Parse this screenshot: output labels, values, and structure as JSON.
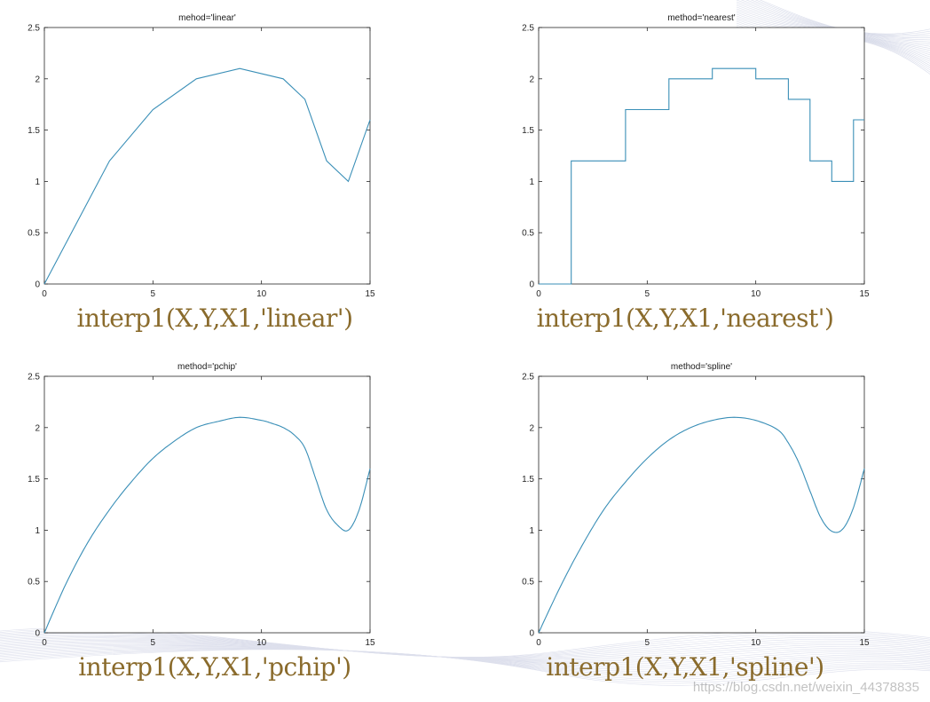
{
  "chart_data": [
    {
      "type": "line",
      "title": "mehod='linear'",
      "caption": "interp1(X,Y,X1,'linear')",
      "xlim": [
        0,
        15
      ],
      "ylim": [
        0,
        2.5
      ],
      "xticks": [
        "0",
        "5",
        "10",
        "15"
      ],
      "yticks": [
        "0",
        "0.5",
        "1",
        "1.5",
        "2",
        "2.5"
      ],
      "grid": false,
      "x": [
        0,
        3,
        5,
        7,
        9,
        11,
        12,
        13,
        14,
        15
      ],
      "y": [
        0,
        1.2,
        1.7,
        2.0,
        2.1,
        2.0,
        1.8,
        1.2,
        1.0,
        1.6
      ],
      "line_color": "#3a8fb7"
    },
    {
      "type": "line",
      "title": "method='nearest'",
      "caption": "interp1(X,Y,X1,'nearest')",
      "xlim": [
        0,
        15
      ],
      "ylim": [
        0,
        2.5
      ],
      "xticks": [
        "0",
        "5",
        "10",
        "15"
      ],
      "yticks": [
        "0",
        "0.5",
        "1",
        "1.5",
        "2",
        "2.5"
      ],
      "grid": false,
      "x": [
        0,
        1.45,
        1.45,
        1.5,
        1.5,
        4,
        4,
        6,
        6,
        8,
        8,
        10,
        10,
        11.5,
        11.5,
        12.5,
        12.5,
        13.5,
        13.5,
        14.5,
        14.5,
        15
      ],
      "y": [
        0,
        0,
        0,
        0,
        1.2,
        1.2,
        1.7,
        1.7,
        2.0,
        2.0,
        2.1,
        2.1,
        2.0,
        2.0,
        1.8,
        1.8,
        1.2,
        1.2,
        1.0,
        1.0,
        1.6,
        1.6
      ],
      "line_color": "#3a8fb7"
    },
    {
      "type": "line",
      "title": "method='pchip'",
      "caption": "interp1(X,Y,X1,'pchip')",
      "xlim": [
        0,
        15
      ],
      "ylim": [
        0,
        2.5
      ],
      "xticks": [
        "0",
        "5",
        "10",
        "15"
      ],
      "yticks": [
        "0",
        "0.5",
        "1",
        "1.5",
        "2",
        "2.5"
      ],
      "grid": false,
      "x": [
        0,
        1,
        2,
        3,
        4,
        5,
        6,
        7,
        8,
        9,
        10,
        10.5,
        11,
        11.5,
        12,
        12.5,
        13,
        13.5,
        14,
        14.5,
        15
      ],
      "y": [
        0,
        0.48,
        0.88,
        1.2,
        1.47,
        1.7,
        1.87,
        2.0,
        2.06,
        2.1,
        2.07,
        2.04,
        2.0,
        1.93,
        1.8,
        1.5,
        1.2,
        1.05,
        1.0,
        1.2,
        1.6
      ],
      "line_color": "#3a8fb7"
    },
    {
      "type": "line",
      "title": "method='spline'",
      "caption": "interp1(X,Y,X1,'spline')",
      "xlim": [
        0,
        15
      ],
      "ylim": [
        0,
        2.5
      ],
      "xticks": [
        "0",
        "5",
        "10",
        "15"
      ],
      "yticks": [
        "0",
        "0.5",
        "1",
        "1.5",
        "2",
        "2.5"
      ],
      "grid": false,
      "x": [
        0,
        1,
        2,
        3,
        4,
        5,
        6,
        7,
        8,
        9,
        10,
        11,
        11.5,
        12,
        12.5,
        13,
        13.5,
        14,
        14.5,
        15
      ],
      "y": [
        0,
        0.45,
        0.85,
        1.2,
        1.47,
        1.7,
        1.88,
        2.0,
        2.07,
        2.1,
        2.07,
        1.98,
        1.85,
        1.65,
        1.38,
        1.12,
        0.99,
        1.01,
        1.22,
        1.6
      ],
      "line_color": "#3a8fb7"
    }
  ],
  "watermark": "https://blog.csdn.net/weixin_44378835"
}
